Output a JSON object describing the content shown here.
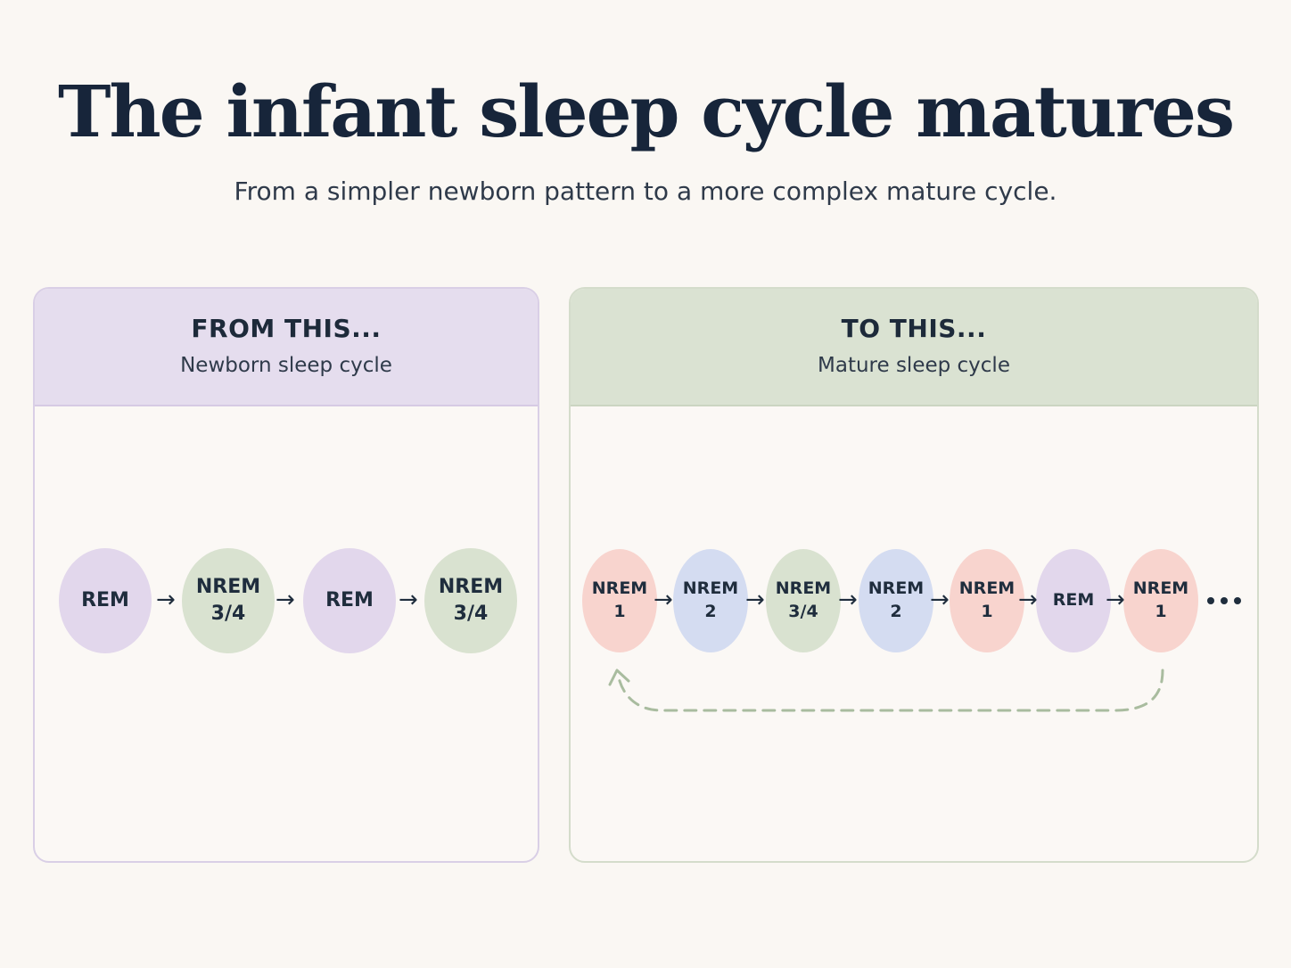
{
  "header": {
    "title": "The infant sleep cycle matures",
    "subtitle": "From a simpler newborn pattern to a more complex mature cycle."
  },
  "colors": {
    "rem": "#e2d7ec",
    "nrem_1": "#f8d4ce",
    "nrem_2": "#d4dcf1",
    "nrem_34": "#d9e2d0",
    "loop_arrow": "#a9bc9f"
  },
  "left_panel": {
    "title": "FROM THIS...",
    "subtitle": "Newborn sleep cycle",
    "stages": [
      {
        "line1": "REM",
        "line2": "",
        "type": "rem"
      },
      {
        "line1": "NREM",
        "line2": "3/4",
        "type": "nrem_34"
      },
      {
        "line1": "REM",
        "line2": "",
        "type": "rem"
      },
      {
        "line1": "NREM",
        "line2": "3/4",
        "type": "nrem_34"
      }
    ],
    "arrow": "→"
  },
  "right_panel": {
    "title": "TO THIS...",
    "subtitle": "Mature sleep cycle",
    "stages": [
      {
        "line1": "NREM",
        "line2": "1",
        "type": "nrem_1"
      },
      {
        "line1": "NREM",
        "line2": "2",
        "type": "nrem_2"
      },
      {
        "line1": "NREM",
        "line2": "3/4",
        "type": "nrem_34"
      },
      {
        "line1": "NREM",
        "line2": "2",
        "type": "nrem_2"
      },
      {
        "line1": "NREM",
        "line2": "1",
        "type": "nrem_1"
      },
      {
        "line1": "REM",
        "line2": "",
        "type": "rem"
      },
      {
        "line1": "NREM",
        "line2": "1",
        "type": "nrem_1"
      }
    ],
    "arrow": "→",
    "continues_icon": "ellipsis-icon",
    "loop_icon": "dashed-return-arrow-icon"
  }
}
